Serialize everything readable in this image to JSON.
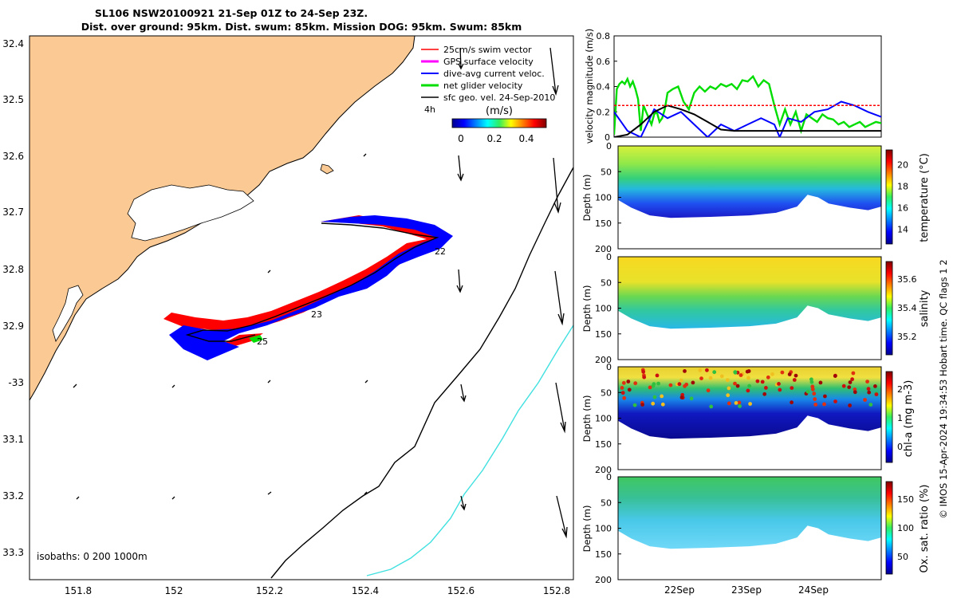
{
  "title": {
    "line1": "SL106 NSW20100921 21-Sep 01Z to 24-Sep 23Z.",
    "line2": "Dist. over ground: 95km. Dist. swum: 85km. Mission DOG: 95km. Swum: 85km"
  },
  "map": {
    "lat_ticks": [
      "32.4",
      "32.5",
      "32.6",
      "32.7",
      "32.8",
      "32.9",
      "-33",
      "33.1",
      "33.2",
      "33.3"
    ],
    "lon_ticks": [
      "151.8",
      "152",
      "152.2",
      "152.4",
      "152.6",
      "152.8"
    ],
    "legend": [
      {
        "label": "25cm/s swim vector",
        "color": "#ff0000"
      },
      {
        "label": "GPS surface velocity",
        "color": "#ff00ff"
      },
      {
        "label": "dive-avg current veloc.",
        "color": "#0000ff"
      },
      {
        "label": "net glider velocity",
        "color": "#00dd00"
      },
      {
        "label": "sfc geo. vel. 24-Sep-2010",
        "color": "#000000"
      }
    ],
    "legend_extra": "4h",
    "colorbar": {
      "title": "(m/s)",
      "ticks": [
        "0",
        "0.2",
        "0.4"
      ]
    },
    "isobaths_label": "isobaths: 0   200  1000m",
    "day_labels": [
      "22",
      "23",
      "25"
    ],
    "colors": {
      "land": "#fbca94",
      "track_red": "#ff0000",
      "track_blue": "#0000ff"
    }
  },
  "chart_data": [
    {
      "type": "line",
      "title": "",
      "ylabel": "velocity magnitude (m/s)",
      "ylim": [
        0,
        0.8
      ],
      "yticks": [
        "0",
        "0.2",
        "0.4",
        "0.6",
        "0.8"
      ],
      "xlim": [
        0,
        100
      ],
      "series": [
        {
          "name": "net glider velocity",
          "color": "#00dd00",
          "x": [
            0,
            1,
            2,
            3,
            4,
            5,
            6,
            7,
            8,
            9,
            10,
            11,
            12,
            13,
            14,
            15,
            16,
            17,
            18,
            19,
            20,
            22,
            24,
            26,
            28,
            30,
            32,
            34,
            36,
            38,
            40,
            42,
            44,
            46,
            48,
            50,
            52,
            54,
            56,
            58,
            60,
            62,
            64,
            66,
            68,
            70,
            72,
            74,
            76,
            78,
            80,
            82,
            84,
            86,
            88,
            90,
            92,
            94,
            96,
            98,
            100
          ],
          "values": [
            0.02,
            0.38,
            0.42,
            0.44,
            0.42,
            0.46,
            0.4,
            0.44,
            0.38,
            0.3,
            0.05,
            0.25,
            0.2,
            0.15,
            0.1,
            0.18,
            0.2,
            0.12,
            0.15,
            0.22,
            0.35,
            0.38,
            0.4,
            0.28,
            0.22,
            0.35,
            0.4,
            0.36,
            0.4,
            0.38,
            0.42,
            0.4,
            0.42,
            0.38,
            0.45,
            0.44,
            0.48,
            0.4,
            0.45,
            0.42,
            0.25,
            0.1,
            0.22,
            0.1,
            0.2,
            0.05,
            0.18,
            0.15,
            0.12,
            0.18,
            0.15,
            0.14,
            0.1,
            0.12,
            0.08,
            0.1,
            0.12,
            0.08,
            0.1,
            0.12,
            0.11
          ]
        },
        {
          "name": "dive-avg current veloc.",
          "color": "#0000ff",
          "x": [
            0,
            5,
            10,
            15,
            20,
            25,
            30,
            35,
            40,
            45,
            50,
            55,
            60,
            62,
            65,
            70,
            75,
            80,
            85,
            90,
            95,
            100
          ],
          "values": [
            0.2,
            0.05,
            0.0,
            0.22,
            0.15,
            0.2,
            0.1,
            0.0,
            0.1,
            0.05,
            0.1,
            0.15,
            0.1,
            0.0,
            0.15,
            0.12,
            0.2,
            0.22,
            0.28,
            0.25,
            0.2,
            0.16
          ]
        },
        {
          "name": "sfc geo. vel.",
          "color": "#000000",
          "x": [
            0,
            5,
            10,
            15,
            20,
            25,
            30,
            35,
            40,
            45,
            50,
            55,
            60,
            65,
            70,
            75,
            80,
            85,
            90,
            95,
            100
          ],
          "values": [
            0.0,
            0.02,
            0.1,
            0.2,
            0.25,
            0.22,
            0.18,
            0.12,
            0.06,
            0.05,
            0.05,
            0.05,
            0.05,
            0.05,
            0.05,
            0.05,
            0.05,
            0.05,
            0.05,
            0.05,
            0.05
          ]
        },
        {
          "name": "threshold",
          "color": "#ff0000",
          "x": [
            0,
            100
          ],
          "values": [
            0.25,
            0.25
          ]
        }
      ]
    },
    {
      "type": "heatmap",
      "ylabel": "Depth (m)",
      "yticks": [
        "0",
        "50",
        "100",
        "150",
        "200"
      ],
      "colorbar_label": "temperature (°C)",
      "colorbar_ticks": [
        "14",
        "16",
        "18",
        "20"
      ],
      "surface_value": 19,
      "bottom_value": 14
    },
    {
      "type": "heatmap",
      "ylabel": "Depth (m)",
      "yticks": [
        "0",
        "50",
        "100",
        "150",
        "200"
      ],
      "colorbar_label": "salinity",
      "colorbar_ticks": [
        "35.2",
        "35.4",
        "35.6"
      ],
      "surface_value": 35.55,
      "bottom_value": 35.2
    },
    {
      "type": "heatmap",
      "ylabel": "Depth (m)",
      "yticks": [
        "0",
        "50",
        "100",
        "150",
        "200"
      ],
      "colorbar_label": "chl-a (mg m-3)",
      "colorbar_ticks": [
        "0",
        "1",
        "2"
      ],
      "surface_value": 1.3,
      "bottom_value": 0.1
    },
    {
      "type": "heatmap",
      "ylabel": "Depth (m)",
      "yticks": [
        "0",
        "50",
        "100",
        "150",
        "200"
      ],
      "colorbar_label": "Ox. sat. ratio (%)",
      "colorbar_ticks": [
        "50",
        "100",
        "150"
      ],
      "surface_value": 110,
      "bottom_value": 90,
      "xticks": [
        "22Sep",
        "23Sep",
        "24Sep"
      ]
    }
  ],
  "credit": "© IMOS 15-Apr-2024 19:34:53 Hobart time. QC flags 1  2"
}
